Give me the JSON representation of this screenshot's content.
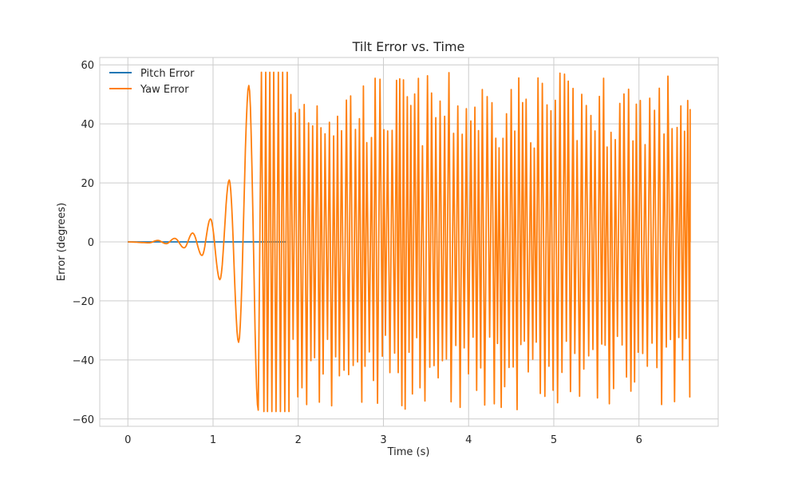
{
  "chart_data": {
    "type": "line",
    "title": "Tilt Error vs. Time",
    "xlabel": "Time (s)",
    "ylabel": "Error (degrees)",
    "xlim": [
      -0.33,
      6.93
    ],
    "ylim": [
      -62.5,
      62.5
    ],
    "x_ticks": [
      0,
      1,
      2,
      3,
      4,
      5,
      6
    ],
    "x_tick_labels": [
      "0",
      "1",
      "2",
      "3",
      "4",
      "5",
      "6"
    ],
    "y_ticks": [
      -60,
      -40,
      -20,
      0,
      20,
      40,
      60
    ],
    "y_tick_labels": [
      "−60",
      "−40",
      "−20",
      "0",
      "20",
      "40",
      "60"
    ],
    "grid": true,
    "legend_position": "top-left",
    "series": [
      {
        "name": "Pitch Error",
        "color": "#1f77b4",
        "points": [
          [
            0,
            0
          ],
          [
            1.85,
            0
          ]
        ]
      },
      {
        "name": "Yaw Error",
        "color": "#ff7f0e",
        "x_range": [
          0,
          6.6
        ],
        "regimes": [
          {
            "x_range": [
              0,
              1.55
            ],
            "shape": "growing oscillation",
            "peaks": [
              [
                0.35,
                0.5
              ],
              [
                0.55,
                1.2
              ],
              [
                0.76,
                3.0
              ],
              [
                0.97,
                7.8
              ],
              [
                1.19,
                21
              ],
              [
                1.42,
                53
              ]
            ],
            "troughs": [
              [
                0.25,
                -0.3
              ],
              [
                0.45,
                -0.6
              ],
              [
                0.66,
                -2.0
              ],
              [
                0.87,
                -4.6
              ],
              [
                1.08,
                -12.8
              ],
              [
                1.3,
                -34
              ],
              [
                1.53,
                -57
              ]
            ]
          },
          {
            "x_range": [
              1.55,
              6.6
            ],
            "shape": "saturated oscillation",
            "max": 57.5,
            "min": -57.5
          }
        ]
      }
    ]
  }
}
